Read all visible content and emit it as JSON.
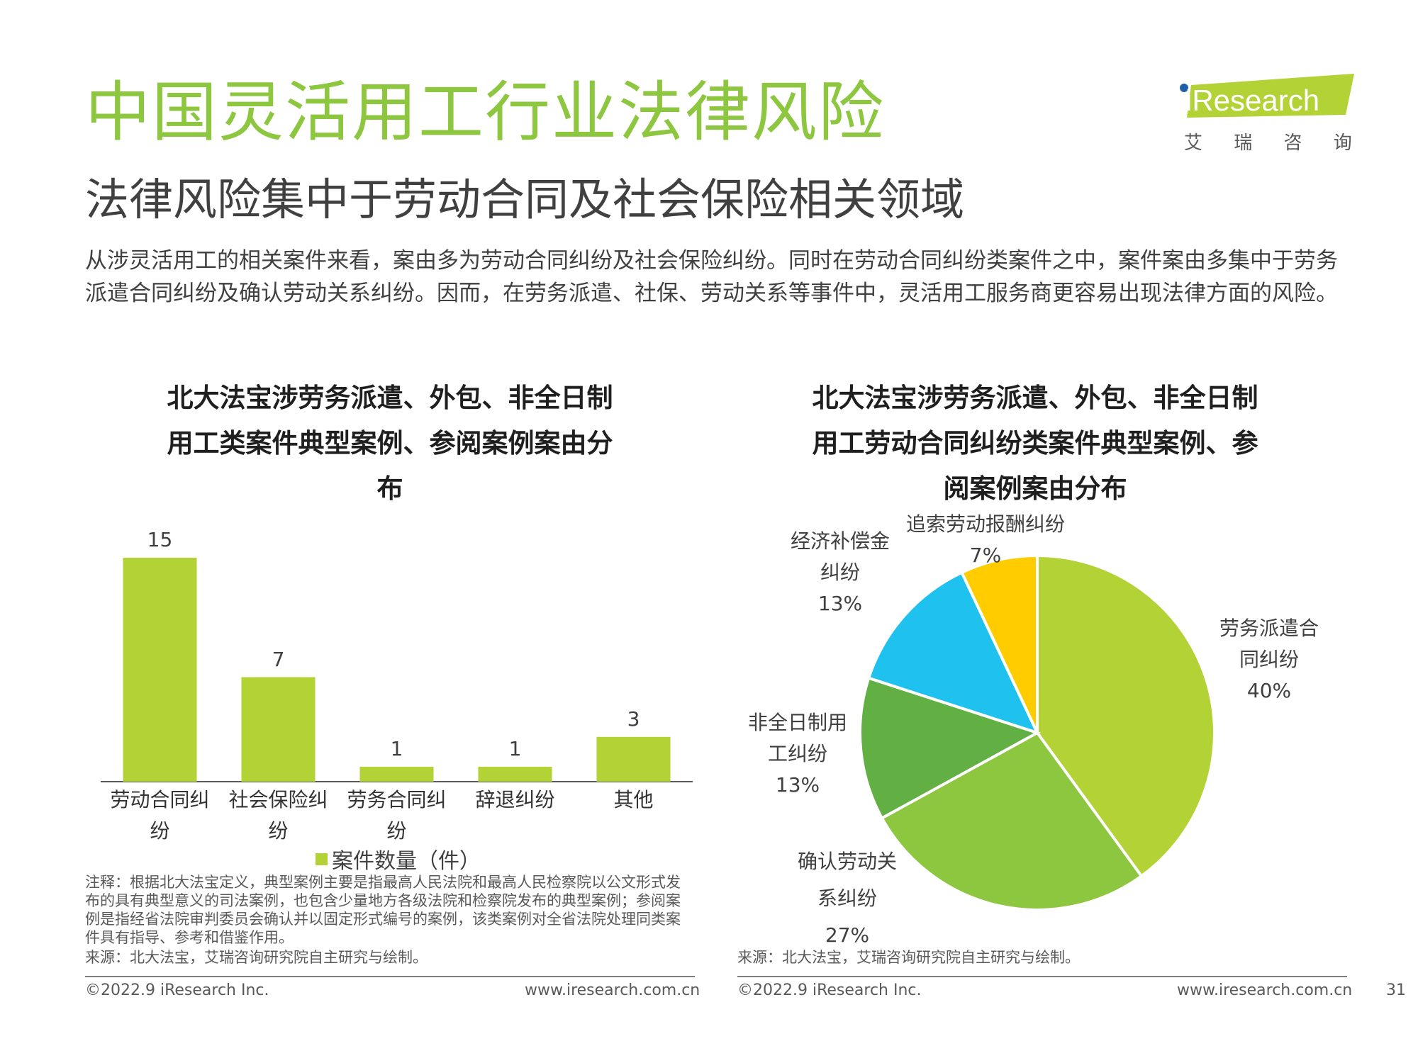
{
  "header": {
    "title": "中国灵活用工行业法律风险",
    "subtitle": "法律风险集中于劳动合同及社会保险相关领域",
    "intro": "从涉灵活用工的相关案件来看，案由多为劳动合同纠纷及社会保险纠纷。同时在劳动合同纠纷类案件之中，案件案由多集中于劳务派遣合同纠纷及确认劳动关系纠纷。因而，在劳务派遣、社保、劳动关系等事件中，灵活用工服务商更容易出现法律方面的风险。"
  },
  "logo": {
    "brand": "iResearch",
    "cn": "艾 瑞 咨 询",
    "accent": "#B2D235"
  },
  "colors": {
    "title_green": "#8DC63F",
    "bar": "#B2D235",
    "pie": [
      "#B2D235",
      "#8DC63F",
      "#62AF44",
      "#1FC2EE",
      "#FFCC00"
    ]
  },
  "chart_data": [
    {
      "type": "bar",
      "title": "北大法宝涉劳务派遣、外包、非全日制用工类案件典型案例、参阅案例案由分布",
      "categories": [
        "劳动合同纠纷",
        "社会保险纠纷",
        "劳务合同纠纷",
        "辞退纠纷",
        "其他"
      ],
      "series": [
        {
          "name": "案件数量（件）",
          "values": [
            15,
            7,
            1,
            1,
            3
          ]
        }
      ],
      "ylim": [
        0,
        15
      ],
      "grid": false,
      "legend": "bottom"
    },
    {
      "type": "pie",
      "title": "北大法宝涉劳务派遣、外包、非全日制用工劳动合同纠纷类案件典型案例、参阅案例案由分布",
      "labels": [
        "劳务派遣合同纠纷",
        "确认劳动关系纠纷",
        "非全日制用工纠纷",
        "经济补偿金纠纷",
        "追索劳动报酬纠纷"
      ],
      "values": [
        40,
        27,
        13,
        13,
        7
      ],
      "value_labels": [
        "40%",
        "27%",
        "13%",
        "13%",
        "7%"
      ]
    }
  ],
  "bar_chart": {
    "title_lines": [
      "北大法宝涉劳务派遣、外包、非全日制",
      "用工类案件典型案例、参阅案例案由分",
      "布"
    ],
    "tick_lines": [
      [
        "劳动合同纠",
        "纷"
      ],
      [
        "社会保险纠",
        "纷"
      ],
      [
        "劳务合同纠",
        "纷"
      ],
      [
        "辞退纠纷"
      ],
      [
        "其他"
      ]
    ],
    "data_labels": [
      "15",
      "7",
      "1",
      "1",
      "3"
    ],
    "legend": "案件数量（件）"
  },
  "pie_chart": {
    "title_lines": [
      "北大法宝涉劳务派遣、外包、非全日制",
      "用工劳动合同纠纷类案件典型案例、参",
      "阅案例案由分布"
    ],
    "label_lines": [
      [
        "劳务派遣合",
        "同纠纷"
      ],
      [
        "确认劳动关",
        "系纠纷"
      ],
      [
        "非全日制用",
        "工纠纷"
      ],
      [
        "经济补偿金",
        "纠纷"
      ],
      [
        "追索劳动报酬纠纷"
      ]
    ]
  },
  "notes": {
    "left_note": "注释：根据北大法宝定义，典型案例主要是指最高人民法院和最高人民检察院以公文形式发布的具有典型意义的司法案例，也包含少量地方各级法院和检察院发布的典型案例；参阅案例是指经省法院审判委员会确认并以固定形式编号的案例，该类案例对全省法院处理同类案件具有指导、参考和借鉴作用。",
    "left_source": "来源：北大法宝，艾瑞咨询研究院自主研究与绘制。",
    "right_source": "来源：北大法宝，艾瑞咨询研究院自主研究与绘制。"
  },
  "footer": {
    "copyright_left": "©2022.9 iResearch Inc.",
    "site_left": "www.iresearch.com.cn",
    "copyright_right": "©2022.9 iResearch Inc.",
    "site_right": "www.iresearch.com.cn",
    "page_number": "31"
  }
}
